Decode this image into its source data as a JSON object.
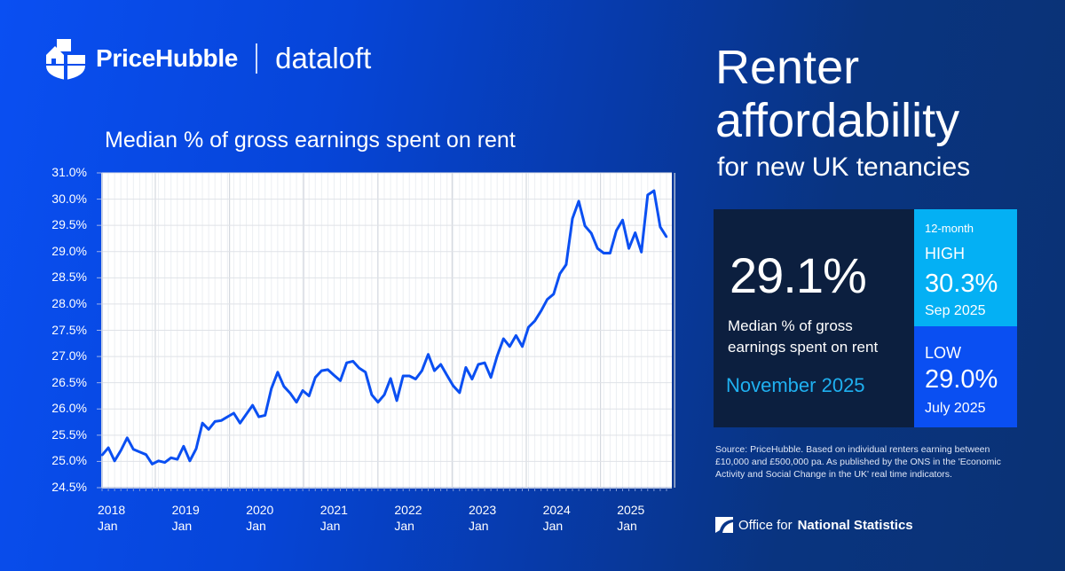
{
  "brand": {
    "primary": "PriceHubble",
    "secondary": "dataloft"
  },
  "headline": {
    "line1": "Renter",
    "line2": "affordability",
    "line3": "for new UK tenancies"
  },
  "stat": {
    "value": "29.1%",
    "description_line1": "Median % of gross",
    "description_line2": "earnings spent on rent",
    "month": "November 2025"
  },
  "high": {
    "period": "12-month",
    "label": "HIGH",
    "value": "30.3%",
    "date": "Sep 2025"
  },
  "low": {
    "label": "LOW",
    "value": "29.0%",
    "date": "July 2025"
  },
  "source": "Source: PriceHubble. Based on individual renters earning between £10,000 and £500,000 pa. As published by the ONS in the 'Economic Activity and Social Change in the UK' real time indicators.",
  "ons": {
    "prefix": "Office for",
    "bold": "National Statistics"
  },
  "colors": {
    "line": "#0a4ff2",
    "dark_box": "#0c1f3f",
    "high_box": "#04b0f4",
    "low_box": "#0a4ff2"
  },
  "chart_data": {
    "type": "line",
    "title": "Median % of gross earnings spent on rent",
    "xlabel": "",
    "ylabel": "",
    "ylim": [
      24.5,
      30.5
    ],
    "y_tick_labels": [
      "31.0%",
      "30.0%",
      "29.5%",
      "29.0%",
      "28.5%",
      "28.0%",
      "27.5%",
      "27.0%",
      "26.5%",
      "26.0%",
      "25.5%",
      "25.0%",
      "24.5%"
    ],
    "x_tick_labels": [
      [
        "2018",
        "Jan"
      ],
      [
        "2019",
        "Jan"
      ],
      [
        "2020",
        "Jan"
      ],
      [
        "2021",
        "Jan"
      ],
      [
        "2022",
        "Jan"
      ],
      [
        "2023",
        "Jan"
      ],
      [
        "2024",
        "Jan"
      ],
      [
        "2025",
        "Jan"
      ]
    ],
    "grid": true,
    "series": [
      {
        "name": "Median % of gross earnings spent on rent",
        "values": [
          25.12,
          25.26,
          25.01,
          25.21,
          25.45,
          25.23,
          25.18,
          25.13,
          24.95,
          25.01,
          24.98,
          25.07,
          25.04,
          25.29,
          25.01,
          25.24,
          25.73,
          25.61,
          25.76,
          25.78,
          25.85,
          25.92,
          25.73,
          25.9,
          26.07,
          25.85,
          25.88,
          26.39,
          26.7,
          26.43,
          26.3,
          26.13,
          26.35,
          26.25,
          26.6,
          26.73,
          26.75,
          26.64,
          26.54,
          26.88,
          26.91,
          26.78,
          26.7,
          26.27,
          26.13,
          26.27,
          26.58,
          26.16,
          26.63,
          26.63,
          26.57,
          26.73,
          27.04,
          26.73,
          26.85,
          26.64,
          26.44,
          26.31,
          26.79,
          26.57,
          26.85,
          26.88,
          26.6,
          27.01,
          27.34,
          27.19,
          27.4,
          27.19,
          27.56,
          27.68,
          27.87,
          28.09,
          28.19,
          28.58,
          28.75,
          29.63,
          29.96,
          29.49,
          29.35,
          29.06,
          28.97,
          28.97,
          29.4,
          29.6,
          29.06,
          29.36,
          28.99,
          30.08,
          30.16,
          29.47,
          29.28
        ]
      }
    ]
  }
}
